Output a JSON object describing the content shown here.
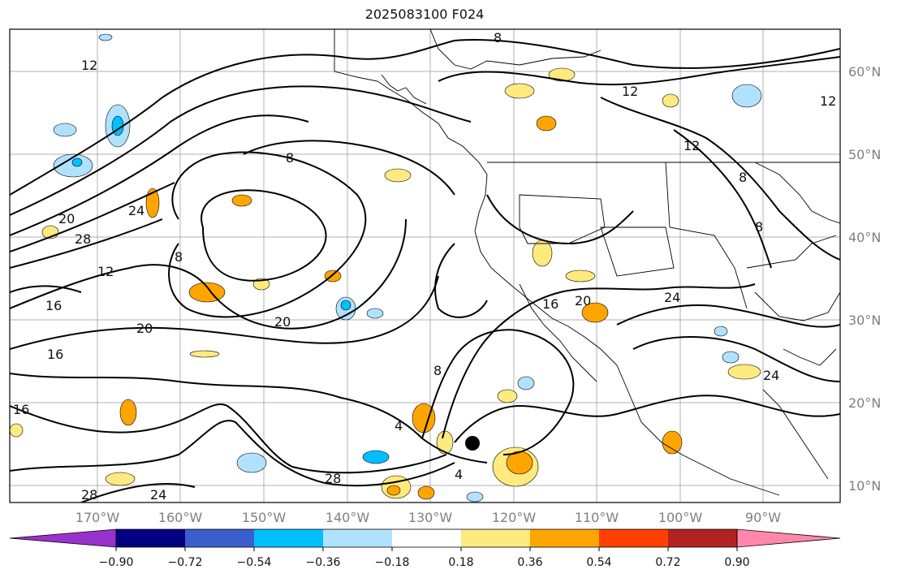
{
  "title": "2025083100 F024",
  "longitude_ticks": [
    "170°W",
    "160°W",
    "150°W",
    "140°W",
    "130°W",
    "120°W",
    "110°W",
    "100°W",
    "90°W"
  ],
  "latitude_ticks": [
    "60°N",
    "50°N",
    "40°N",
    "30°N",
    "20°N",
    "10°N"
  ],
  "colorbar": {
    "colors": [
      "#9932cc",
      "#000080",
      "#3a5fcd",
      "#00bfff",
      "#b0e2ff",
      "#ffffff",
      "#ffea80",
      "#ffa500",
      "#ff4000",
      "#b22222",
      "#ff88aa"
    ],
    "tick_labels": [
      "−0.90",
      "−0.72",
      "−0.54",
      "−0.36",
      "−0.18",
      "0.18",
      "0.36",
      "0.54",
      "0.72",
      "0.90"
    ]
  },
  "contour_labels": [
    "12",
    "8",
    "8",
    "8",
    "12",
    "12",
    "20",
    "24",
    "28",
    "12",
    "16",
    "16",
    "16",
    "20",
    "20",
    "8",
    "4",
    "28",
    "28",
    "24",
    "16",
    "20",
    "24",
    "24",
    "8",
    "8",
    "12",
    "4"
  ],
  "colors": {
    "contour": "#000000",
    "coast": "#000000",
    "grid": "#b0b0b0"
  }
}
